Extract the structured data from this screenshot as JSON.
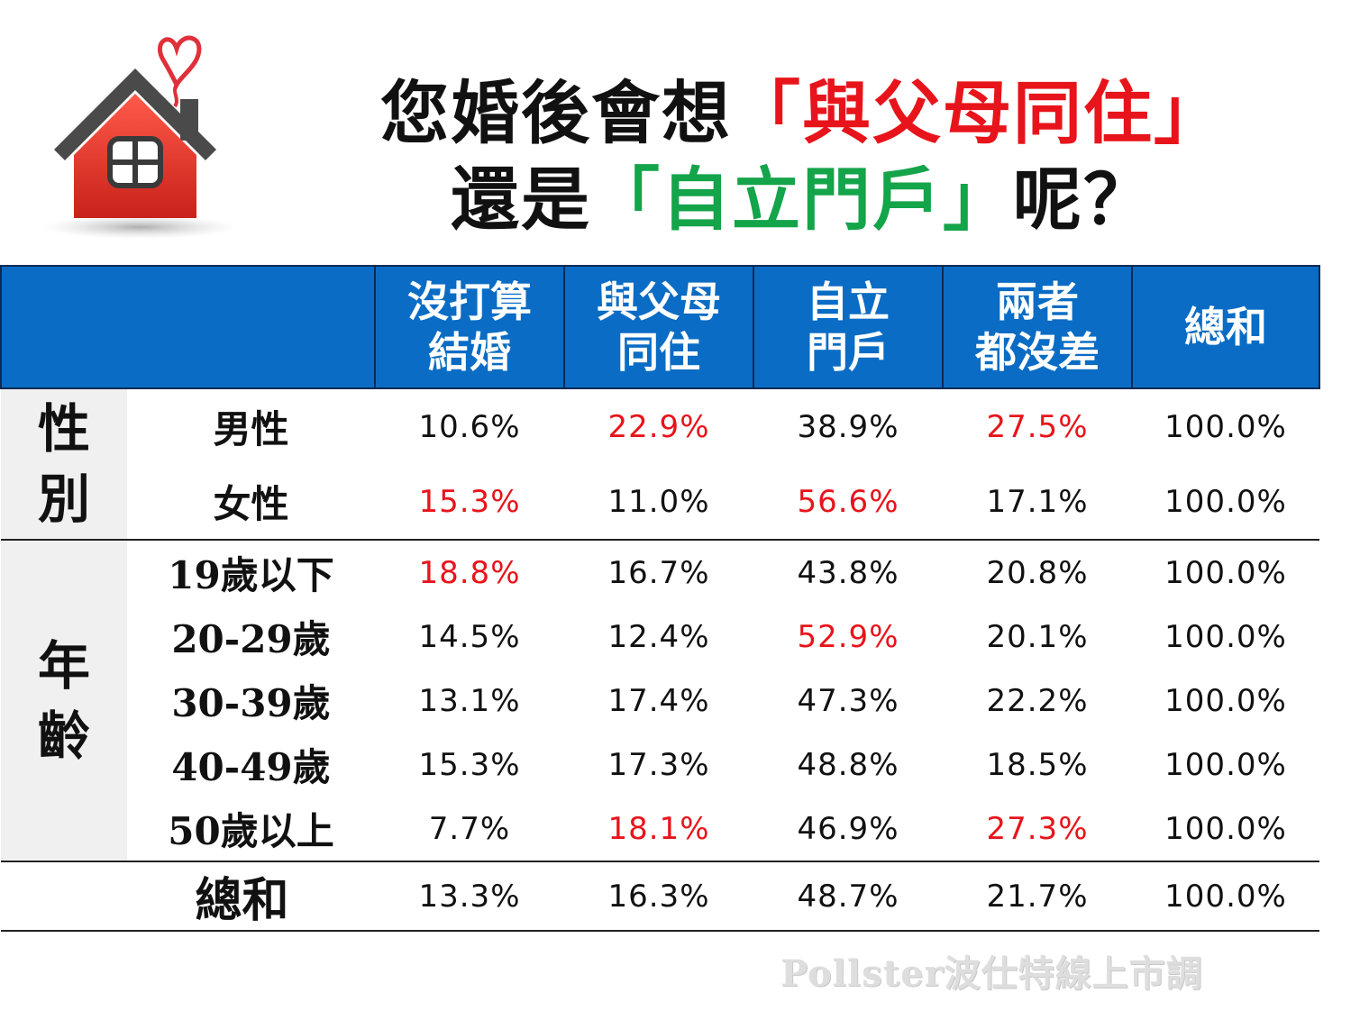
{
  "title": {
    "line1_prefix": "您婚後會想",
    "line1_highlight": "「與父母同住」",
    "line2_prefix": "還是",
    "line2_highlight": "「自立門戶」",
    "line2_suffix": "呢？"
  },
  "colors": {
    "header_bg": "#0a6cc4",
    "highlight_red": "#e8141b",
    "highlight_green": "#14a44a",
    "group_bg": "#f0f0f0"
  },
  "icon": "house-with-heart-icon",
  "chart_data": {
    "type": "table",
    "columns": [
      [
        "沒打算",
        "結婚"
      ],
      [
        "與父母",
        "同住"
      ],
      [
        "自立",
        "門戶"
      ],
      [
        "兩者",
        "都沒差"
      ],
      [
        "總和"
      ]
    ],
    "groups": [
      {
        "name": [
          "性",
          "別"
        ],
        "rows": [
          {
            "label": "男性",
            "values": [
              "10.6%",
              "22.9%",
              "38.9%",
              "27.5%",
              "100.0%"
            ],
            "highlight": [
              false,
              true,
              false,
              true,
              false
            ]
          },
          {
            "label": "女性",
            "values": [
              "15.3%",
              "11.0%",
              "56.6%",
              "17.1%",
              "100.0%"
            ],
            "highlight": [
              true,
              false,
              true,
              false,
              false
            ]
          }
        ]
      },
      {
        "name": [
          "年",
          "齡"
        ],
        "rows": [
          {
            "label": "19歲以下",
            "values": [
              "18.8%",
              "16.7%",
              "43.8%",
              "20.8%",
              "100.0%"
            ],
            "highlight": [
              true,
              false,
              false,
              false,
              false
            ]
          },
          {
            "label": "20-29歲",
            "values": [
              "14.5%",
              "12.4%",
              "52.9%",
              "20.1%",
              "100.0%"
            ],
            "highlight": [
              false,
              false,
              true,
              false,
              false
            ]
          },
          {
            "label": "30-39歲",
            "values": [
              "13.1%",
              "17.4%",
              "47.3%",
              "22.2%",
              "100.0%"
            ],
            "highlight": [
              false,
              false,
              false,
              false,
              false
            ]
          },
          {
            "label": "40-49歲",
            "values": [
              "15.3%",
              "17.3%",
              "48.8%",
              "18.5%",
              "100.0%"
            ],
            "highlight": [
              false,
              false,
              false,
              false,
              false
            ]
          },
          {
            "label": "50歲以上",
            "values": [
              "7.7%",
              "18.1%",
              "46.9%",
              "27.3%",
              "100.0%"
            ],
            "highlight": [
              false,
              true,
              false,
              true,
              false
            ]
          }
        ]
      }
    ],
    "total": {
      "label": "總和",
      "values": [
        "13.3%",
        "16.3%",
        "48.7%",
        "21.7%",
        "100.0%"
      ]
    }
  },
  "watermark": "Pollster波仕特線上市調"
}
